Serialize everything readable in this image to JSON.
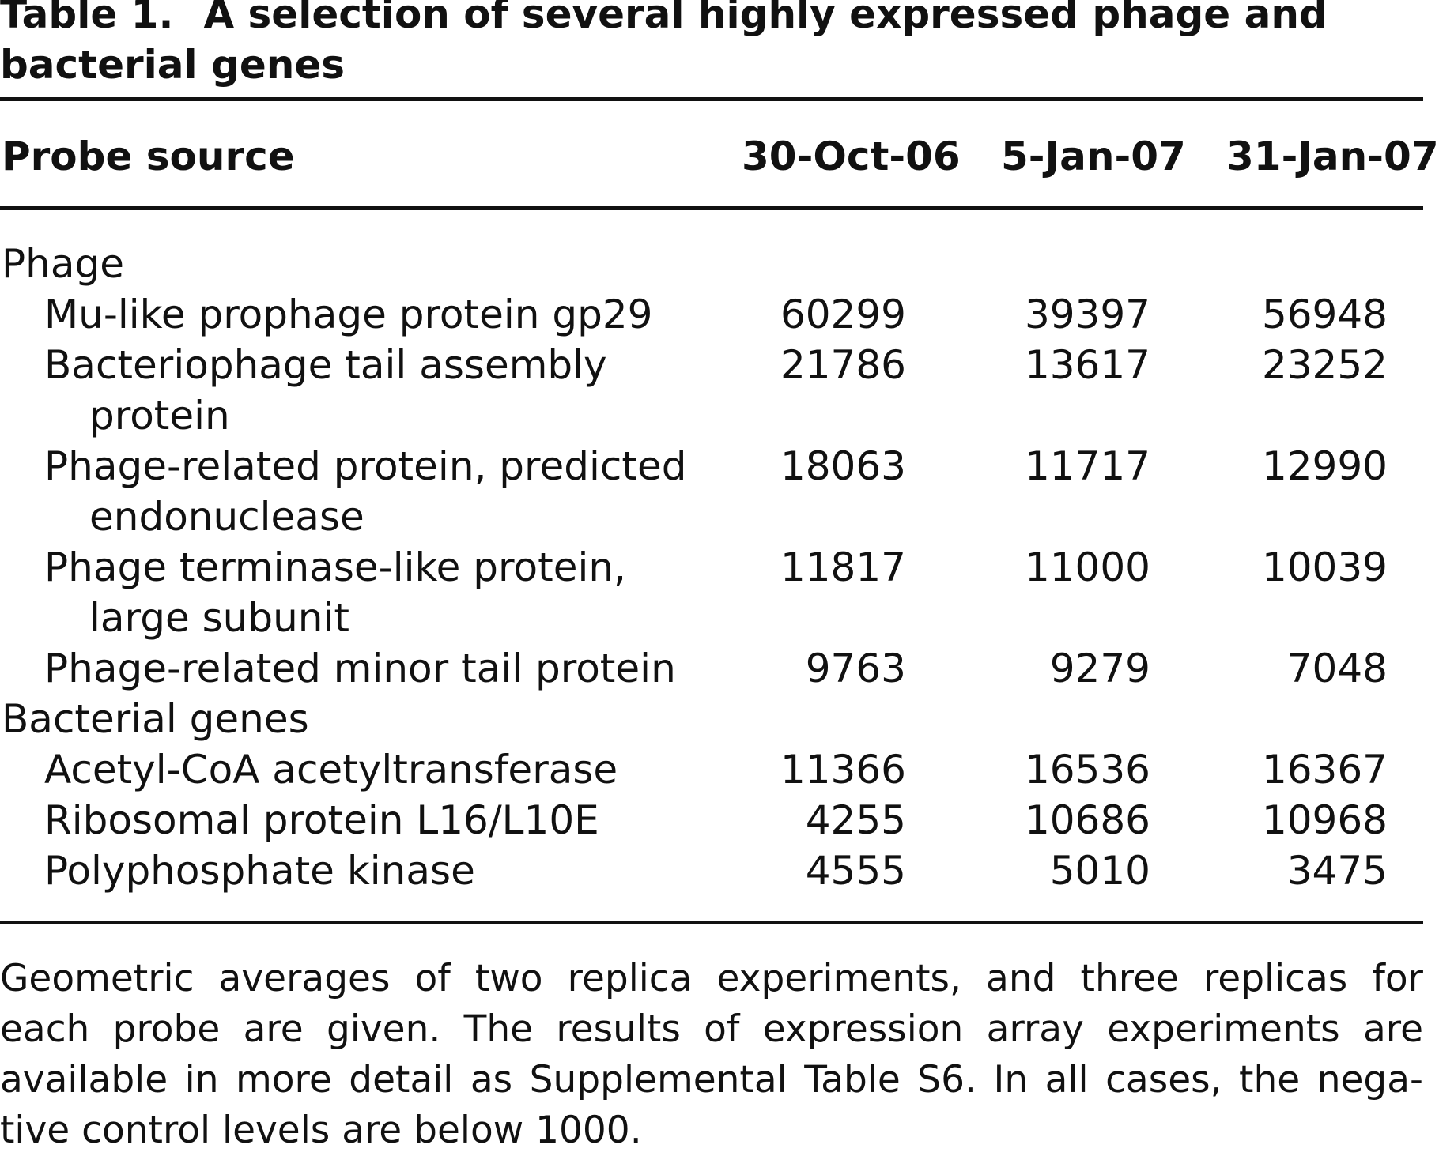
{
  "caption": {
    "label": "Table 1.",
    "title_line1": "A selection of several highly expressed phage and",
    "title_line2": "bacterial genes"
  },
  "table": {
    "headers": [
      "Probe source",
      "30-Oct-06",
      "5-Jan-07",
      "31-Jan-07"
    ],
    "groups": [
      {
        "label": "Phage",
        "rows": [
          {
            "name": "Mu-like prophage protein gp29",
            "name_cont": "",
            "values": [
              "60299",
              "39397",
              "56948"
            ]
          },
          {
            "name": "Bacteriophage tail assembly",
            "name_cont": "protein",
            "values": [
              "21786",
              "13617",
              "23252"
            ]
          },
          {
            "name": "Phage-related protein, predicted",
            "name_cont": "endonuclease",
            "values": [
              "18063",
              "11717",
              "12990"
            ]
          },
          {
            "name": "Phage terminase-like protein,",
            "name_cont": "large subunit",
            "values": [
              "11817",
              "11000",
              "10039"
            ]
          },
          {
            "name": "Phage-related minor tail protein",
            "name_cont": "",
            "values": [
              "9763",
              "9279",
              "7048"
            ]
          }
        ]
      },
      {
        "label": "Bacterial genes",
        "rows": [
          {
            "name": "Acetyl-CoA acetyltransferase",
            "name_cont": "",
            "values": [
              "11366",
              "16536",
              "16367"
            ]
          },
          {
            "name": "Ribosomal protein L16/L10E",
            "name_cont": "",
            "values": [
              "4255",
              "10686",
              "10968"
            ]
          },
          {
            "name": "Polyphosphate kinase",
            "name_cont": "",
            "values": [
              "4555",
              "5010",
              "3475"
            ]
          }
        ]
      }
    ]
  },
  "footnote": {
    "lines": [
      "Geometric averages of two replica experiments, and three replicas for",
      "each probe are given. The results of expression array experiments are",
      "available in more detail as Supplemental Table S6. In all cases, the nega-",
      "tive control levels are below 1000."
    ]
  }
}
